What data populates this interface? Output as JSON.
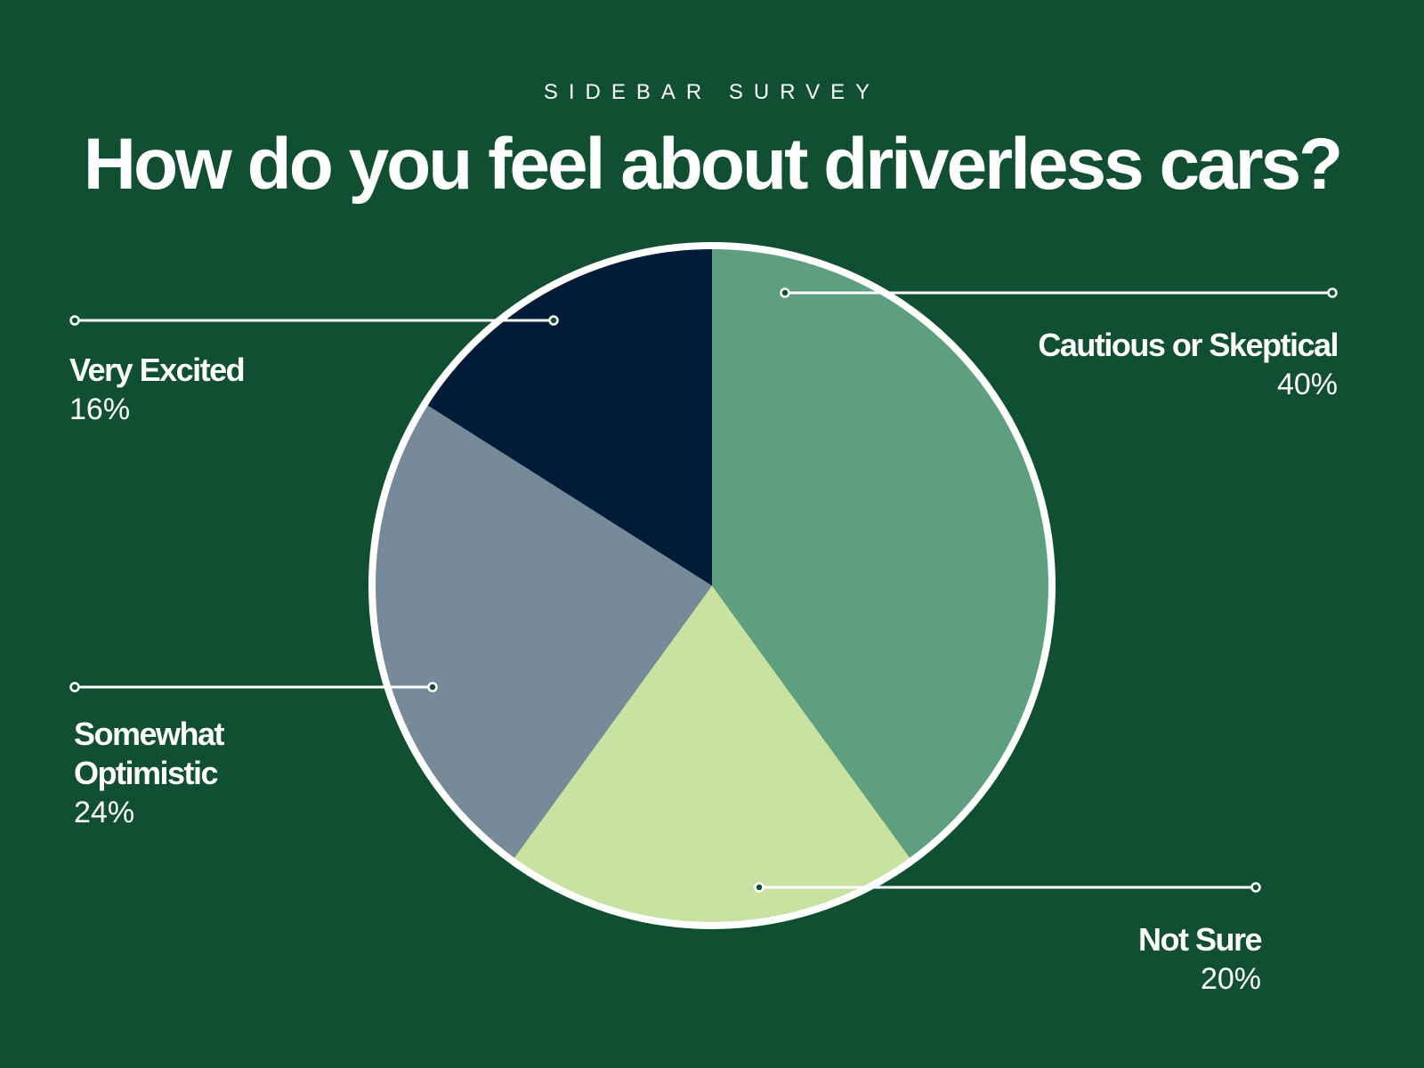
{
  "eyebrow": "SIDEBAR SURVEY",
  "background": "#104f32",
  "chart_data": {
    "type": "pie",
    "title": "How do you feel about driverless cars?",
    "start": "top, clockwise",
    "slices": [
      {
        "label": "Cautious or Skeptical",
        "value": 40,
        "display": "40%",
        "color": "#5e9f80"
      },
      {
        "label": "Not Sure",
        "value": 20,
        "display": "20%",
        "color": "#c9e2a1"
      },
      {
        "label": "Somewhat Optimistic",
        "value": 24,
        "display": "24%",
        "color": "#778a99"
      },
      {
        "label": "Very Excited",
        "value": 16,
        "display": "16%",
        "color": "#011b38"
      }
    ]
  }
}
